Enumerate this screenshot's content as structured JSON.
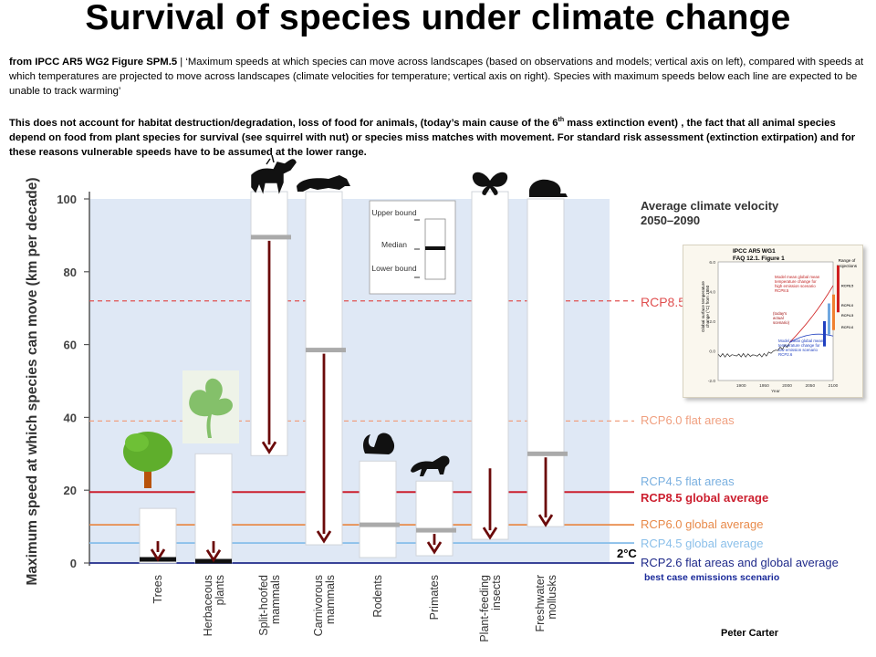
{
  "page": {
    "title": "Survival of species under climate change",
    "source_bold": "from IPCC AR5 WG2 Figure SPM.5",
    "source_rest": " | ‘Maximum speeds at which species can move across landscapes (based on observations and models; vertical axis on left), compared with speeds at which temperatures are projected to move across landscapes (climate velocities for temperature; vertical axis on right). Species with maximum speeds below each line are expected to be unable to track warming’",
    "note_a": "This does not account for habitat destruction/degradation, loss of food for animals,  (today’s  main  cause of the 6",
    "note_sup": "th",
    "note_b": " mass extinction event) , the fact that all animal species depend on food from plant species for survival (see squirrel with nut) or species miss matches  with movement. For standard  risk assessment  (extinction extirpation) and for these reasons vulnerable speeds have to be assumed at the lower range.",
    "credit": "Peter Carter"
  },
  "chart_data": {
    "type": "bar",
    "ylabel": "Maximum speed at which species can move (km per decade)",
    "ylim": [
      0,
      100
    ],
    "yticks": [
      "0",
      "20",
      "40",
      "60",
      "80",
      "100"
    ],
    "groups": [
      {
        "name": "Trees",
        "lower": 0,
        "upper": 15,
        "median": 1,
        "arrow_end": 0.5,
        "icon": "tree"
      },
      {
        "name": "Herbaceous plants",
        "lower": 0,
        "upper": 30,
        "median": 0.5,
        "arrow_end": 0.3,
        "icon": "leaf"
      },
      {
        "name": "Split-hoofed mammals",
        "lower": 29.5,
        "upper": 102,
        "median": 89.5,
        "arrow_end": 30,
        "icon": "moose"
      },
      {
        "name": "Carnivorous mammals",
        "lower": 5,
        "upper": 102,
        "median": 58.5,
        "arrow_end": 5.5,
        "icon": "wolf"
      },
      {
        "name": "Rodents",
        "lower": 1.5,
        "upper": 28,
        "median": 10.5,
        "arrow_end": null,
        "icon": "squirrel"
      },
      {
        "name": "Primates",
        "lower": 2,
        "upper": 22.5,
        "median": 9,
        "arrow_end": 2.5,
        "icon": "monkey"
      },
      {
        "name": "Plant-feeding insects",
        "lower": 6.5,
        "upper": 102,
        "median": null,
        "arrow_start": 26,
        "arrow_end": 6.5,
        "icon": "butterfly"
      },
      {
        "name": "Freshwater mollusks",
        "lower": 10,
        "upper": 100,
        "median": 30,
        "arrow_end": 10,
        "icon": "snail"
      }
    ],
    "legend": {
      "upper": "Upper bound",
      "median": "Median",
      "lower": "Lower bound",
      "placement": "top-center"
    },
    "velocity_title": [
      "Average climate velocity",
      "2050–2090"
    ],
    "reference_lines": [
      {
        "label": "RCP8.5",
        "value": 72,
        "color": "#e05050",
        "style": "dashed"
      },
      {
        "label": "RCP6.0 flat areas",
        "value": 39,
        "color": "#f0a080",
        "style": "dashed"
      },
      {
        "label": "RCP4.5 flat areas",
        "value": 22,
        "color": "#7ab0e0",
        "style": "none"
      },
      {
        "label": "RCP8.5 global average",
        "value": 19.5,
        "color": "#cc1f2f",
        "style": "solid"
      },
      {
        "label": "RCP6.0 global average",
        "value": 10.5,
        "color": "#e88a4a",
        "style": "solid"
      },
      {
        "label": "RCP4.5 global average",
        "value": 5.5,
        "color": "#8cc0ea",
        "style": "solid"
      },
      {
        "label": "RCP2.6  flat areas and global average",
        "value": 0,
        "color": "#1f2a8a",
        "style": "solid"
      }
    ],
    "annotation_2c": "2°C",
    "best_case": "best case emissions scenario",
    "colors": {
      "plot_bg": "#dfe8f5",
      "bar_fill": "#ffffff",
      "median": "#aaaaaa",
      "arrow": "#6b0a0a"
    }
  },
  "inset": {
    "title": "IPCC AR5 WG1\nFAQ 12.1. Figure 1",
    "ylabel": "Global surface temperature change (°C)  from 1850",
    "range_label": "Range of projections",
    "high_text": "Model mean global mean temperature change for high emission scenario RCP8.5",
    "actual_text": "(today's actual scenario)",
    "low_text": "Model mean global mean temperature change for low emission scenario RCP2.6",
    "yticks": [
      "6.0",
      "4.0",
      "2.0",
      "0.0",
      "-2.0"
    ],
    "xticks": [
      "1900",
      "1950",
      "2000",
      "2050",
      "2100"
    ],
    "xlabel": "Year",
    "rcp_labels": [
      "RCP8.5",
      "RCP6.0",
      "RCP4.5",
      "RCP2.6"
    ]
  }
}
